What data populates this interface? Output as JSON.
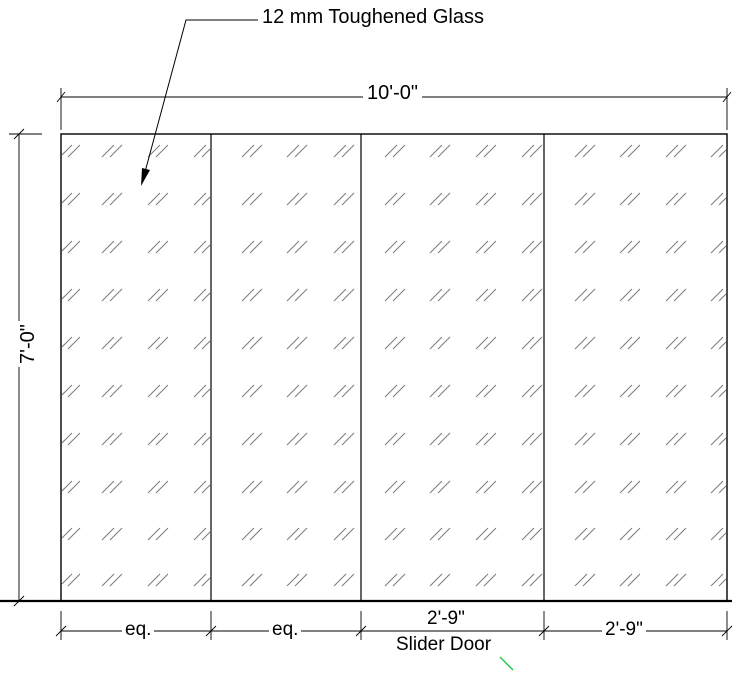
{
  "drawing": {
    "glass_note": "12 mm Toughened Glass",
    "overall_width": "10'-0\"",
    "overall_height": "7'-0\"",
    "panel_dims": [
      "eq.",
      "eq.",
      "2'-9\"",
      "2'-9\""
    ],
    "slider_label": "Slider Door",
    "colors": {
      "line": "#000000",
      "hatch": "#7a7a7a",
      "marker": "#22cc44"
    }
  }
}
